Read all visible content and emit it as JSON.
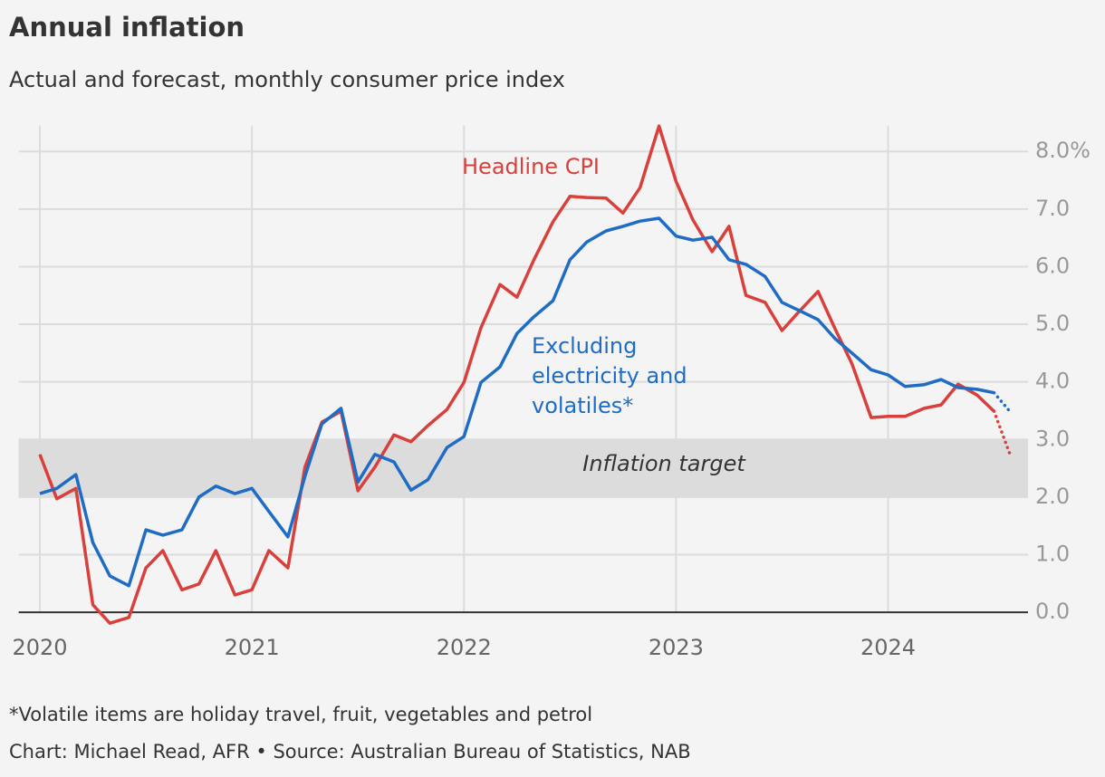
{
  "chart_data": {
    "type": "line",
    "title": "Annual inflation",
    "subtitle": "Actual and forecast, monthly consumer price index",
    "notes": [
      "*Volatile items are holiday travel, fruit, vegetables and petrol",
      "Chart: Michael Read, AFR • Source: Australian Bureau of Statistics, NAB"
    ],
    "x": [
      2020,
      2020.08,
      2020.17,
      2020.25,
      2020.33,
      2020.42,
      2020.5,
      2020.58,
      2020.67,
      2020.75,
      2020.83,
      2020.92,
      2021,
      2021.08,
      2021.17,
      2021.25,
      2021.33,
      2021.42,
      2021.5,
      2021.58,
      2021.67,
      2021.75,
      2021.83,
      2021.92,
      2022,
      2022.08,
      2022.17,
      2022.25,
      2022.33,
      2022.42,
      2022.5,
      2022.58,
      2022.67,
      2022.75,
      2022.83,
      2022.92,
      2023,
      2023.08,
      2023.17,
      2023.25,
      2023.33,
      2023.42,
      2023.5,
      2023.58,
      2023.67,
      2023.75,
      2023.83,
      2023.92,
      2024,
      2024.08,
      2024.17,
      2024.25,
      2024.33,
      2024.42,
      2024.5,
      2024.58
    ],
    "xlim": [
      2019.9,
      2024.66
    ],
    "xticks": [
      2020,
      2021,
      2022,
      2023,
      2024
    ],
    "ylim": [
      -0.25,
      8.45
    ],
    "yticks": [
      {
        "value": 0,
        "label": "0.0"
      },
      {
        "value": 1,
        "label": "1.0"
      },
      {
        "value": 2,
        "label": "2.0"
      },
      {
        "value": 3,
        "label": "3.0"
      },
      {
        "value": 4,
        "label": "4.0"
      },
      {
        "value": 5,
        "label": "5.0"
      },
      {
        "value": 6,
        "label": "6.0"
      },
      {
        "value": 7,
        "label": "7.0"
      },
      {
        "value": 8,
        "label": "8.0%"
      }
    ],
    "grid": true,
    "bands": [
      {
        "from": 2,
        "to": 3,
        "label": "Inflation target",
        "color": "#dcdcdc"
      }
    ],
    "series": [
      {
        "label": [
          "Headline CPI"
        ],
        "color": "#d9403b",
        "forecast_from": 54,
        "values": [
          2.74,
          1.97,
          2.15,
          0.13,
          -0.19,
          -0.09,
          0.77,
          1.07,
          0.39,
          0.49,
          1.07,
          0.3,
          0.39,
          1.07,
          0.77,
          2.52,
          3.3,
          3.49,
          2.11,
          2.52,
          3.08,
          2.96,
          3.24,
          3.52,
          3.99,
          4.94,
          5.69,
          5.47,
          6.12,
          6.78,
          7.22,
          7.2,
          7.19,
          6.93,
          7.37,
          8.44,
          7.48,
          6.81,
          6.26,
          6.7,
          5.5,
          5.38,
          4.89,
          5.22,
          5.57,
          4.92,
          4.31,
          3.38,
          3.4,
          3.4,
          3.54,
          3.6,
          3.96,
          3.77,
          3.49,
          2.69
        ]
      },
      {
        "label": [
          "Excluding",
          "electricity and",
          "volatiles*"
        ],
        "color": "#1f6cc4",
        "forecast_from": 54,
        "values": [
          2.06,
          2.15,
          2.39,
          1.21,
          0.63,
          0.46,
          1.43,
          1.34,
          1.43,
          2.0,
          2.19,
          2.06,
          2.15,
          1.75,
          1.31,
          2.36,
          3.27,
          3.54,
          2.26,
          2.74,
          2.61,
          2.12,
          2.3,
          2.86,
          3.05,
          3.99,
          4.26,
          4.84,
          5.13,
          5.41,
          6.12,
          6.43,
          6.62,
          6.7,
          6.79,
          6.84,
          6.53,
          6.46,
          6.51,
          6.12,
          6.04,
          5.83,
          5.38,
          5.24,
          5.08,
          4.75,
          4.5,
          4.21,
          4.12,
          3.92,
          3.95,
          4.04,
          3.9,
          3.87,
          3.81,
          3.46
        ]
      }
    ]
  }
}
